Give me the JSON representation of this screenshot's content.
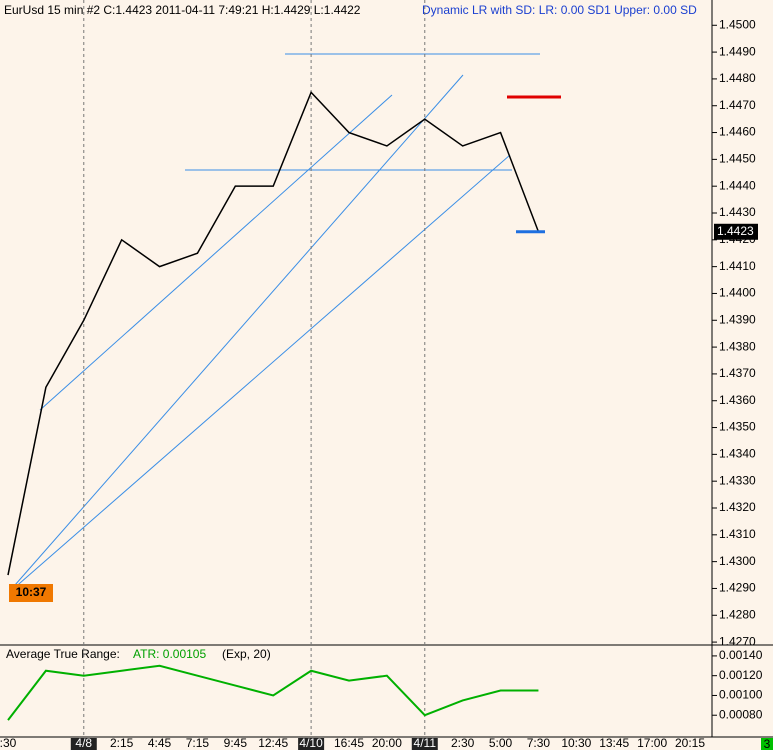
{
  "chart_data": [
    {
      "type": "line",
      "title": "EurUsd  15 min  #2 C:1.4423 2011-04-11 7:49:21 H:1.4429 L:1.4422",
      "subtitle": "Dynamic LR with SD:  LR: 0.00  SD1 Upper: 0.00  SD",
      "annotation": "10:37",
      "last_price": 1.4423,
      "corner_label": "3",
      "categories": [
        ":30",
        null,
        "4/8",
        "2:15",
        "4:45",
        "7:15",
        "9:45",
        "12:45",
        "4/10",
        "16:45",
        "20:00",
        "4/11",
        "2:30",
        "5:00",
        "7:30",
        "10:30",
        "13:45",
        "17:00",
        "20:15"
      ],
      "series": [
        {
          "name": "EurUsd",
          "color": "#000000",
          "values": [
            1.4295,
            1.4365,
            1.439,
            1.442,
            1.441,
            1.4415,
            1.444,
            1.444,
            1.4475,
            1.446,
            1.4455,
            1.4465,
            1.4455,
            1.446,
            1.4423,
            null,
            null,
            null,
            null
          ]
        }
      ],
      "ylim": [
        1.4266,
        1.4506
      ],
      "yticks": [
        {
          "value": 1.427,
          "label": "1.4270"
        },
        {
          "value": 1.428,
          "label": "1.4280"
        },
        {
          "value": 1.429,
          "label": "1.4290"
        },
        {
          "value": 1.43,
          "label": "1.4300"
        },
        {
          "value": 1.431,
          "label": "1.4310"
        },
        {
          "value": 1.432,
          "label": "1.4320"
        },
        {
          "value": 1.433,
          "label": "1.4330"
        },
        {
          "value": 1.434,
          "label": "1.4340"
        },
        {
          "value": 1.435,
          "label": "1.4350"
        },
        {
          "value": 1.436,
          "label": "1.4360"
        },
        {
          "value": 1.437,
          "label": "1.4370"
        },
        {
          "value": 1.438,
          "label": "1.4380"
        },
        {
          "value": 1.439,
          "label": "1.4390"
        },
        {
          "value": 1.44,
          "label": "1.4400"
        },
        {
          "value": 1.441,
          "label": "1.4410"
        },
        {
          "value": 1.442,
          "label": "1.4420"
        },
        {
          "value": 1.443,
          "label": "1.4430"
        },
        {
          "value": 1.444,
          "label": "1.4440"
        },
        {
          "value": 1.445,
          "label": "1.4450"
        },
        {
          "value": 1.446,
          "label": "1.4460"
        },
        {
          "value": 1.447,
          "label": "1.4470"
        },
        {
          "value": 1.448,
          "label": "1.4480"
        },
        {
          "value": 1.449,
          "label": "1.4490"
        },
        {
          "value": 1.45,
          "label": "1.4500"
        }
      ]
    },
    {
      "type": "line",
      "title": "Average True Range:",
      "subtitle": "ATR: 0.00105",
      "note": "(Exp, 20)",
      "series": [
        {
          "name": "ATR",
          "color": "#00b000",
          "values": [
            0.00075,
            0.00125,
            0.0012,
            0.00125,
            0.0013,
            0.0012,
            0.0011,
            0.001,
            0.00125,
            0.00115,
            0.0012,
            0.0008,
            0.00095,
            0.00105,
            0.00105,
            null,
            null,
            null,
            null
          ]
        }
      ],
      "ylim": [
        0.0006,
        0.00148
      ],
      "yticks": [
        {
          "value": 0.0008,
          "label": "0.00080"
        },
        {
          "value": 0.001,
          "label": "0.00100"
        },
        {
          "value": 0.0012,
          "label": "0.00120"
        },
        {
          "value": 0.0014,
          "label": "0.00140"
        }
      ]
    }
  ]
}
